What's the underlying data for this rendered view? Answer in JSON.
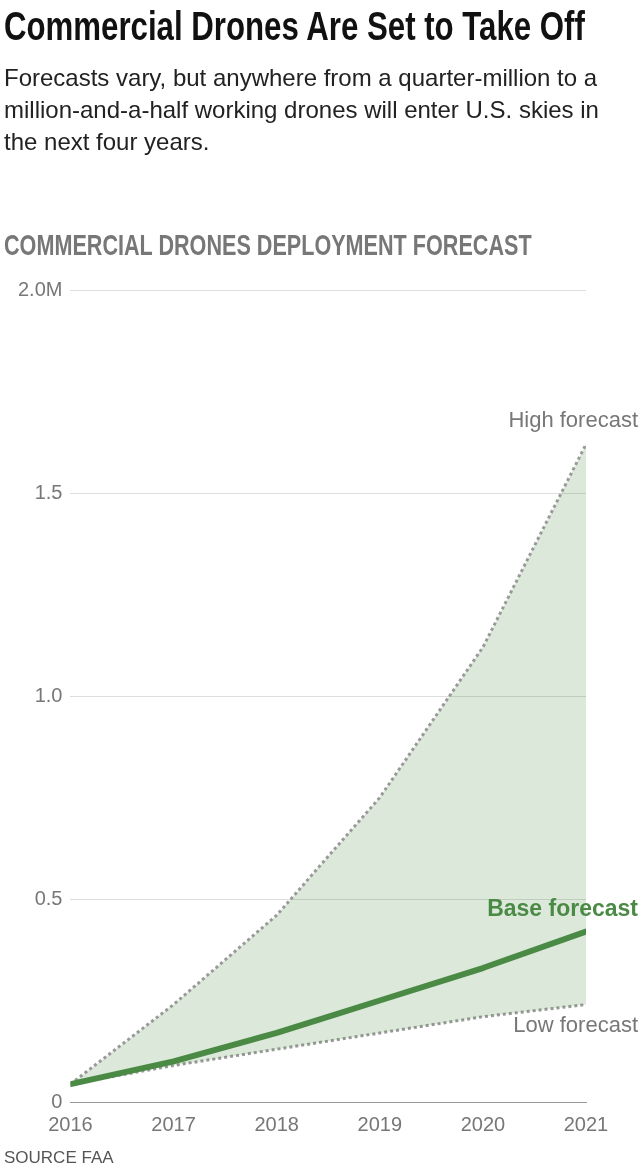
{
  "chart_data": {
    "type": "line",
    "title": "Commercial Drones Are Set to Take Off",
    "subtitle": "Forecasts vary, but anywhere from a quarter-million to a million-and-a-half working drones will enter U.S. skies in the next four years.",
    "x": [
      2016,
      2017,
      2018,
      2019,
      2020,
      2021
    ],
    "series": [
      {
        "name": "Base forecast",
        "color": "#4a8a45",
        "values": [
          0.044,
          0.1,
          0.17,
          0.25,
          0.33,
          0.42
        ],
        "lower": [
          0.044,
          0.09,
          0.13,
          0.17,
          0.21,
          0.24
        ],
        "upper": [
          0.044,
          0.24,
          0.46,
          0.75,
          1.12,
          1.62
        ]
      }
    ],
    "xlim": [
      2016,
      2021
    ],
    "xticks": [
      2016,
      2017,
      2018,
      2019,
      2020,
      2021
    ],
    "ylim": [
      0,
      2
    ],
    "yticks": [
      {
        "value": 0,
        "label": "0"
      },
      {
        "value": 0.5,
        "label": "0.5"
      },
      {
        "value": 1,
        "label": "1.0"
      },
      {
        "value": 1.5,
        "label": "1.5"
      },
      {
        "value": 2,
        "label": "2.0M"
      }
    ],
    "grid": "y",
    "marker": "none",
    "line_style": "solid",
    "legend": false,
    "annotations": [
      "COMMERCIAL DRONES DEPLOYMENT FORECAST",
      {
        "text": "High forecast",
        "x": 2021,
        "y": 1.62
      },
      {
        "text": "Low forecast",
        "x": 2021,
        "y": 0.24
      },
      "SOURCE FAA"
    ]
  }
}
